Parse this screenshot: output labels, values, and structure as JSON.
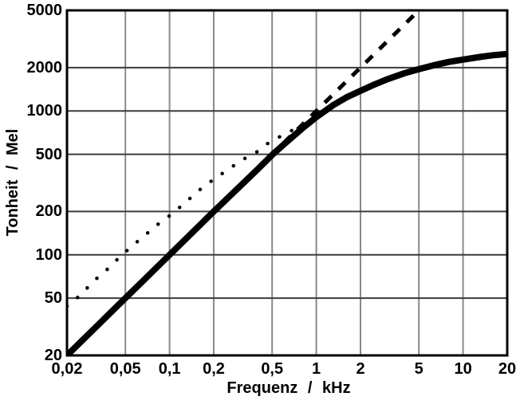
{
  "figure": {
    "background": "#ffffff",
    "text_color": "#000000",
    "frame_color": "#000000",
    "grid_color_vertical": "#8a8a8a",
    "grid_color_horizontal": "#3c3c3c"
  },
  "chart_data": {
    "type": "line",
    "title": "",
    "xlabel": "Frequenz / kHz",
    "ylabel": "Tonheit / Mel",
    "x_scale": "log",
    "y_scale": "log",
    "xlim": [
      0.02,
      20
    ],
    "ylim": [
      20,
      5000
    ],
    "grid": true,
    "legend": "none",
    "x_ticks": [
      {
        "value": 0.02,
        "label": "0,02"
      },
      {
        "value": 0.05,
        "label": "0,05"
      },
      {
        "value": 0.1,
        "label": "0,1"
      },
      {
        "value": 0.2,
        "label": "0,2"
      },
      {
        "value": 0.5,
        "label": "0,5"
      },
      {
        "value": 1,
        "label": "1"
      },
      {
        "value": 2,
        "label": "2"
      },
      {
        "value": 5,
        "label": "5"
      },
      {
        "value": 10,
        "label": "10"
      },
      {
        "value": 20,
        "label": "20"
      }
    ],
    "y_ticks": [
      {
        "value": 20,
        "label": "20"
      },
      {
        "value": 50,
        "label": "50"
      },
      {
        "value": 100,
        "label": "100"
      },
      {
        "value": 200,
        "label": "200"
      },
      {
        "value": 500,
        "label": "500"
      },
      {
        "value": 1000,
        "label": "1000"
      },
      {
        "value": 2000,
        "label": "2000"
      },
      {
        "value": 5000,
        "label": "5000"
      }
    ],
    "series": [
      {
        "id": "mel-curve-solid",
        "style": "solid",
        "color": "#000000",
        "width": 8,
        "points": [
          [
            0.02,
            20
          ],
          [
            0.03,
            30
          ],
          [
            0.05,
            50
          ],
          [
            0.07,
            70
          ],
          [
            0.1,
            100
          ],
          [
            0.15,
            150
          ],
          [
            0.2,
            200
          ],
          [
            0.3,
            298
          ],
          [
            0.4,
            395
          ],
          [
            0.5,
            495
          ],
          [
            0.6,
            585
          ],
          [
            0.8,
            755
          ],
          [
            1.0,
            905
          ],
          [
            1.3,
            1095
          ],
          [
            1.6,
            1240
          ],
          [
            2.0,
            1380
          ],
          [
            2.5,
            1530
          ],
          [
            3.0,
            1650
          ],
          [
            4.0,
            1830
          ],
          [
            5.0,
            1950
          ],
          [
            6.5,
            2090
          ],
          [
            8.0,
            2190
          ],
          [
            10.0,
            2275
          ],
          [
            13.0,
            2370
          ],
          [
            16.0,
            2440
          ],
          [
            20.0,
            2490
          ]
        ]
      },
      {
        "id": "dotted-curve",
        "style": "dotted",
        "color": "#000000",
        "width": 4.5,
        "points": [
          [
            0.02,
            44
          ],
          [
            0.025,
            53
          ],
          [
            0.03,
            65
          ],
          [
            0.037,
            78
          ],
          [
            0.045,
            95
          ],
          [
            0.055,
            114
          ],
          [
            0.068,
            137
          ],
          [
            0.084,
            164
          ],
          [
            0.105,
            194
          ],
          [
            0.13,
            234
          ],
          [
            0.156,
            277
          ],
          [
            0.2,
            335
          ],
          [
            0.25,
            391
          ],
          [
            0.31,
            455
          ],
          [
            0.39,
            516
          ],
          [
            0.49,
            618
          ],
          [
            0.62,
            693
          ],
          [
            0.79,
            798
          ],
          [
            0.88,
            852
          ]
        ]
      },
      {
        "id": "dashed-proportional-line",
        "style": "dashed",
        "color": "#000000",
        "width": 5,
        "points": [
          [
            0.6,
            600
          ],
          [
            4.72,
            4720
          ]
        ]
      }
    ]
  }
}
